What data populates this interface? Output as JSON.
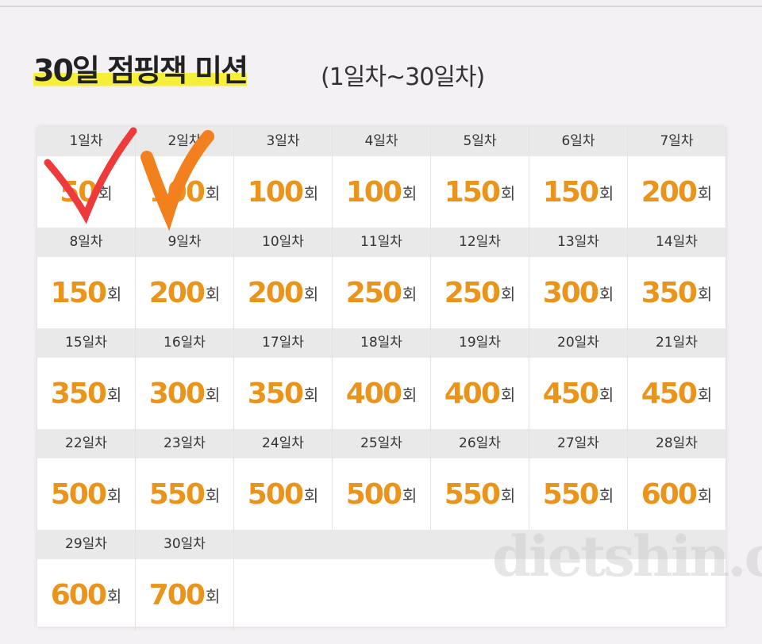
{
  "header": {
    "title": "30일 점핑잭 미션",
    "subtitle": "(1일차~30일차)"
  },
  "table": {
    "unit": "회",
    "days": [
      {
        "day": "1일차",
        "count": 50
      },
      {
        "day": "2일차",
        "count": 100
      },
      {
        "day": "3일차",
        "count": 100
      },
      {
        "day": "4일차",
        "count": 100
      },
      {
        "day": "5일차",
        "count": 150
      },
      {
        "day": "6일차",
        "count": 150
      },
      {
        "day": "7일차",
        "count": 200
      },
      {
        "day": "8일차",
        "count": 150
      },
      {
        "day": "9일차",
        "count": 200
      },
      {
        "day": "10일차",
        "count": 200
      },
      {
        "day": "11일차",
        "count": 250
      },
      {
        "day": "12일차",
        "count": 250
      },
      {
        "day": "13일차",
        "count": 300
      },
      {
        "day": "14일차",
        "count": 350
      },
      {
        "day": "15일차",
        "count": 350
      },
      {
        "day": "16일차",
        "count": 300
      },
      {
        "day": "17일차",
        "count": 350
      },
      {
        "day": "18일차",
        "count": 400
      },
      {
        "day": "19일차",
        "count": 400
      },
      {
        "day": "20일차",
        "count": 450
      },
      {
        "day": "21일차",
        "count": 450
      },
      {
        "day": "22일차",
        "count": 500
      },
      {
        "day": "23일차",
        "count": 550
      },
      {
        "day": "24일차",
        "count": 500
      },
      {
        "day": "25일차",
        "count": 500
      },
      {
        "day": "26일차",
        "count": 550
      },
      {
        "day": "27일차",
        "count": 550
      },
      {
        "day": "28일차",
        "count": 600
      },
      {
        "day": "29일차",
        "count": 600
      },
      {
        "day": "30일차",
        "count": 700
      }
    ]
  },
  "watermark": "dietshin.com"
}
